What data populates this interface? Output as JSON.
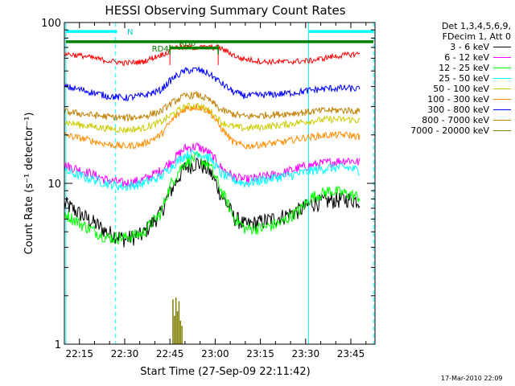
{
  "chart_data": {
    "type": "line",
    "title": "HESSI Observing Summary Count Rates",
    "xlabel": "Start Time (27-Sep-09 22:11:42)",
    "ylabel": "Count Rate (s⁻¹ detector⁻¹)",
    "x_unit": "minutes of day (UTC)",
    "xlim": [
      1330,
      1433
    ],
    "ylim": [
      1,
      100
    ],
    "y_scale": "log",
    "x_ticks": [
      {
        "value": 1335,
        "label": "22:15"
      },
      {
        "value": 1350,
        "label": "22:30"
      },
      {
        "value": 1365,
        "label": "22:45"
      },
      {
        "value": 1380,
        "label": "23:00"
      },
      {
        "value": 1395,
        "label": "23:15"
      },
      {
        "value": 1410,
        "label": "23:30"
      },
      {
        "value": 1425,
        "label": "23:45"
      }
    ],
    "y_ticks": [
      {
        "value": 1,
        "label": "1"
      },
      {
        "value": 10,
        "label": "10"
      },
      {
        "value": 100,
        "label": "100"
      }
    ],
    "legend": {
      "position": "right",
      "header": [
        "Det 1,3,4,5,6,9,",
        "FDecim 1, Att 0"
      ]
    },
    "series": [
      {
        "name": "3 - 6 keV",
        "color": "#000000",
        "x": [
          1330,
          1336,
          1344,
          1350,
          1356,
          1362,
          1366,
          1370,
          1374,
          1378,
          1382,
          1386,
          1390,
          1396,
          1402,
          1408,
          1412,
          1418,
          1424,
          1428
        ],
        "y": [
          7.5,
          6.3,
          5.0,
          4.5,
          4.8,
          6.5,
          9.5,
          12.5,
          13.5,
          12.0,
          8.5,
          6.2,
          5.5,
          5.8,
          6.2,
          6.8,
          7.5,
          7.8,
          8.0,
          7.8
        ]
      },
      {
        "name": "6 - 12 keV",
        "color": "#ff00ff",
        "x": [
          1330,
          1336,
          1344,
          1350,
          1356,
          1362,
          1366,
          1370,
          1374,
          1378,
          1382,
          1386,
          1390,
          1396,
          1402,
          1408,
          1412,
          1418,
          1424,
          1428
        ],
        "y": [
          13,
          12,
          10.5,
          10,
          10.5,
          12,
          14,
          16.5,
          17,
          15.5,
          12.5,
          11,
          10.5,
          11,
          11.5,
          12.5,
          13,
          13.5,
          14,
          13.5
        ]
      },
      {
        "name": "12 - 25 keV",
        "color": "#00ff00",
        "x": [
          1330,
          1336,
          1344,
          1350,
          1356,
          1362,
          1366,
          1370,
          1374,
          1378,
          1382,
          1386,
          1390,
          1396,
          1402,
          1408,
          1412,
          1418,
          1424,
          1428
        ],
        "y": [
          6.5,
          5.5,
          4.6,
          4.6,
          4.9,
          6.5,
          10.5,
          13.5,
          14.5,
          13,
          9,
          6.2,
          5.2,
          5.3,
          5.7,
          6.8,
          8.2,
          9,
          8.6,
          8.2
        ]
      },
      {
        "name": "25 - 50 keV",
        "color": "#00ffff",
        "x": [
          1330,
          1336,
          1344,
          1350,
          1356,
          1362,
          1366,
          1370,
          1374,
          1378,
          1382,
          1386,
          1390,
          1396,
          1402,
          1408,
          1412,
          1418,
          1424,
          1428
        ],
        "y": [
          12,
          11,
          10,
          9.5,
          10,
          11,
          13,
          15,
          15.5,
          14.5,
          11.5,
          10.5,
          10,
          10.5,
          11,
          11.5,
          12,
          12.5,
          12.5,
          12
        ]
      },
      {
        "name": "50 - 100 keV",
        "color": "#cccc00",
        "x": [
          1330,
          1336,
          1344,
          1350,
          1356,
          1362,
          1366,
          1370,
          1374,
          1378,
          1382,
          1386,
          1390,
          1396,
          1402,
          1408,
          1412,
          1418,
          1424,
          1428
        ],
        "y": [
          24,
          23,
          22,
          21.5,
          22,
          24,
          27,
          30,
          30.5,
          28.5,
          24,
          22.5,
          22,
          22.5,
          23,
          24,
          24.5,
          25,
          25,
          24.5
        ]
      },
      {
        "name": "100 - 300 keV",
        "color": "#ff8c00",
        "x": [
          1330,
          1336,
          1344,
          1350,
          1356,
          1362,
          1366,
          1370,
          1374,
          1378,
          1382,
          1386,
          1390,
          1396,
          1402,
          1408,
          1412,
          1418,
          1424,
          1428
        ],
        "y": [
          20,
          19,
          17.5,
          17,
          17.5,
          20,
          25,
          29,
          30,
          28,
          22,
          18,
          17,
          17.5,
          18,
          19,
          19.5,
          20,
          20,
          19.5
        ]
      },
      {
        "name": "300 - 800 keV",
        "color": "#0000ff",
        "x": [
          1330,
          1336,
          1344,
          1350,
          1356,
          1362,
          1366,
          1370,
          1374,
          1378,
          1382,
          1386,
          1390,
          1396,
          1402,
          1408,
          1412,
          1418,
          1424,
          1428
        ],
        "y": [
          40,
          38,
          35,
          34,
          35,
          38,
          45,
          50,
          51,
          48,
          42,
          37,
          35,
          35.5,
          36,
          37,
          38,
          39,
          39,
          38.5
        ]
      },
      {
        "name": "800 - 7000 keV",
        "color": "#c08000",
        "x": [
          1330,
          1336,
          1344,
          1350,
          1356,
          1362,
          1366,
          1370,
          1374,
          1378,
          1382,
          1386,
          1390,
          1396,
          1402,
          1408,
          1412,
          1418,
          1424,
          1428
        ],
        "y": [
          28,
          27,
          26,
          25.5,
          26,
          28,
          32,
          35,
          35.5,
          33,
          28.5,
          27,
          26,
          26.5,
          27,
          27.5,
          28,
          28.5,
          28.5,
          28
        ]
      },
      {
        "name": "7000 - 20000 keV",
        "color": "#808000",
        "x": [
          1366,
          1366.5,
          1367,
          1367.5,
          1368,
          1368.5,
          1369
        ],
        "y": [
          1.9,
          1.5,
          1.95,
          1.6,
          1.85,
          1.4,
          1.3
        ]
      }
    ],
    "attenuator_trace": {
      "color": "#ff0000",
      "x": [
        1330,
        1336,
        1344,
        1350,
        1356,
        1362,
        1365,
        1365.2,
        1374,
        1381,
        1381.2,
        1388,
        1396,
        1404,
        1412,
        1418,
        1424,
        1428
      ],
      "y": [
        64,
        62,
        58,
        56,
        57,
        63,
        66,
        70,
        70,
        70,
        70,
        60,
        57,
        57,
        58,
        61,
        63,
        64
      ]
    },
    "annotations": [
      {
        "text": "N",
        "x": 1350.8,
        "y": 88,
        "color": "#00cccc"
      },
      {
        "text": "RD4",
        "x": 1359.0,
        "y": 69,
        "color": "#008000"
      },
      {
        "text": "RD0",
        "x": 1368.0,
        "y": 75,
        "color": "#008000"
      }
    ],
    "flag_bars": [
      {
        "color": "#00ffff",
        "y": 88,
        "x": [
          [
            1330.5,
            1347.5
          ],
          [
            1411.0,
            1432.5
          ]
        ]
      },
      {
        "color": "#008000",
        "y": 76,
        "x": [
          [
            1330.5,
            1432.5
          ]
        ]
      },
      {
        "color": "#008000",
        "y": 69.5,
        "x": [
          [
            1365,
            1381
          ]
        ]
      }
    ],
    "vertical_lines": [
      {
        "x": 1330.5,
        "style": "solid",
        "color": "#00ffff"
      },
      {
        "x": 1347.0,
        "style": "dashed",
        "color": "#00ffff"
      },
      {
        "x": 1411.0,
        "style": "solid",
        "color": "#00ffff"
      },
      {
        "x": 1432.5,
        "style": "dashed",
        "color": "#00ffff"
      }
    ]
  },
  "footer_stamp": "17-Mar-2010 22:09"
}
